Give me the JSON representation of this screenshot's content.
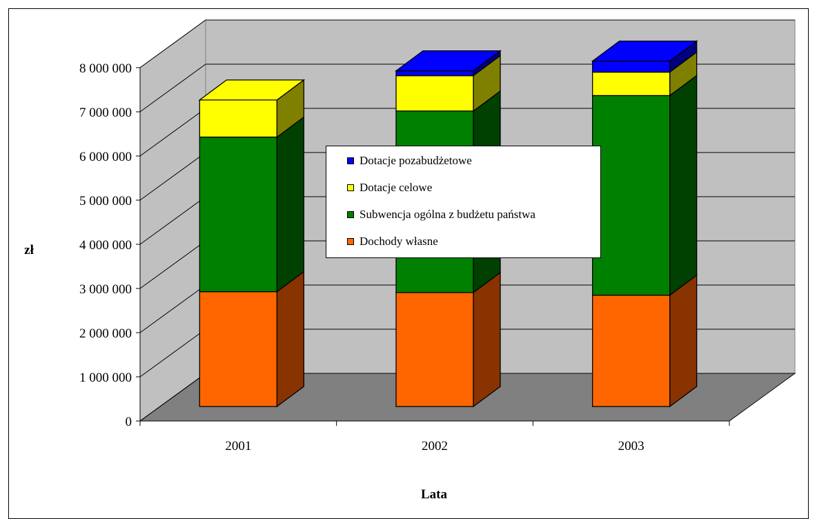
{
  "chart_data": {
    "type": "bar",
    "stacked": true,
    "three_d": true,
    "title": "",
    "xlabel": "Lata",
    "ylabel": "zł",
    "categories": [
      "2001",
      "2002",
      "2003"
    ],
    "ylim": [
      0,
      8000000
    ],
    "yticks": [
      "0",
      "1 000 000",
      "2 000 000",
      "3 000 000",
      "4 000 000",
      "5 000 000",
      "6 000 000",
      "7 000 000",
      "8 000 000"
    ],
    "grid": true,
    "legend_position": "center",
    "series": [
      {
        "name": "Dochody własne",
        "color": "#FF6600",
        "side_color": "#883300",
        "values": [
          2600000,
          2580000,
          2520000
        ]
      },
      {
        "name": "Subwencja ogólna z budżetu państwa",
        "color": "#008000",
        "side_color": "#004000",
        "values": [
          3500000,
          4110000,
          4520000
        ]
      },
      {
        "name": "Dotacje celowe",
        "color": "#FFFF00",
        "side_color": "#808000",
        "values": [
          840000,
          800000,
          530000
        ]
      },
      {
        "name": "Dotacje pozabudżetowe",
        "color": "#0000FF",
        "side_color": "#000080",
        "values": [
          0,
          110000,
          250000
        ]
      }
    ],
    "legend_order": [
      "Dotacje pozabudżetowe",
      "Dotacje celowe",
      "Subwencja ogólna z budżetu państwa",
      "Dochody własne"
    ]
  }
}
